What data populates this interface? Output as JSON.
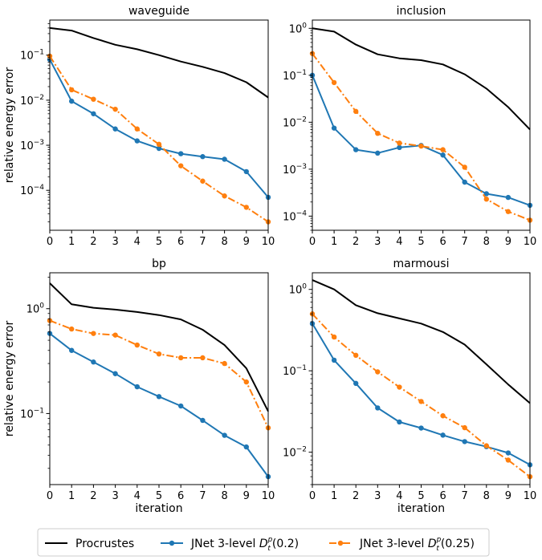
{
  "chart_data": [
    {
      "type": "line",
      "title": "waveguide",
      "xlabel": "",
      "ylabel": "relative energy error",
      "yscale": "log",
      "ylim": [
        1.3e-05,
        0.6
      ],
      "xlim": [
        0,
        10
      ],
      "x": [
        0,
        1,
        2,
        3,
        4,
        5,
        6,
        7,
        8,
        9,
        10
      ],
      "xticks": [
        "0",
        "1",
        "2",
        "3",
        "4",
        "5",
        "6",
        "7",
        "8",
        "9",
        "10"
      ],
      "yticks": [
        {
          "value": 0.1,
          "base": "10",
          "exp": "−1"
        },
        {
          "value": 0.01,
          "base": "10",
          "exp": "−2"
        },
        {
          "value": 0.001,
          "base": "10",
          "exp": "−3"
        },
        {
          "value": 0.0001,
          "base": "10",
          "exp": "−4"
        }
      ],
      "grid": false,
      "series": [
        {
          "name": "Procrustes",
          "values": [
            0.4,
            0.35,
            0.24,
            0.17,
            0.135,
            0.1,
            0.072,
            0.055,
            0.04,
            0.025,
            0.0115
          ]
        },
        {
          "name": "JNet 3-level D_t^p(0.2)",
          "values": [
            0.08,
            0.0095,
            0.005,
            0.0023,
            0.00125,
            0.00085,
            0.00065,
            0.00056,
            0.00049,
            0.00026,
            7e-05
          ]
        },
        {
          "name": "JNet 3-level D_t^p(0.25)",
          "values": [
            0.095,
            0.017,
            0.0105,
            0.0063,
            0.0023,
            0.00105,
            0.00035,
            0.00016,
            7.5e-05,
            4.2e-05,
            2e-05
          ]
        }
      ]
    },
    {
      "type": "line",
      "title": "inclusion",
      "xlabel": "",
      "ylabel": "",
      "yscale": "log",
      "ylim": [
        5e-05,
        1.5
      ],
      "xlim": [
        0,
        10
      ],
      "x": [
        0,
        1,
        2,
        3,
        4,
        5,
        6,
        7,
        8,
        9,
        10
      ],
      "xticks": [
        "0",
        "1",
        "2",
        "3",
        "4",
        "5",
        "6",
        "7",
        "8",
        "9",
        "10"
      ],
      "yticks": [
        {
          "value": 1,
          "base": "10",
          "exp": "0"
        },
        {
          "value": 0.1,
          "base": "10",
          "exp": "−1"
        },
        {
          "value": 0.01,
          "base": "10",
          "exp": "−2"
        },
        {
          "value": 0.001,
          "base": "10",
          "exp": "−3"
        },
        {
          "value": 0.0001,
          "base": "10",
          "exp": "−4"
        }
      ],
      "grid": false,
      "series": [
        {
          "name": "Procrustes",
          "values": [
            1.0,
            0.85,
            0.45,
            0.28,
            0.23,
            0.21,
            0.17,
            0.105,
            0.052,
            0.021,
            0.007
          ]
        },
        {
          "name": "JNet 3-level D_t^p(0.2)",
          "values": [
            0.1,
            0.0075,
            0.0026,
            0.0022,
            0.0029,
            0.0032,
            0.002,
            0.00053,
            0.0003,
            0.00025,
            0.00017
          ]
        },
        {
          "name": "JNet 3-level D_t^p(0.25)",
          "values": [
            0.29,
            0.07,
            0.017,
            0.0058,
            0.0036,
            0.0031,
            0.0026,
            0.0011,
            0.00023,
            0.000125,
            8.2e-05
          ]
        }
      ]
    },
    {
      "type": "line",
      "title": "bp",
      "xlabel": "iteration",
      "ylabel": "relative energy error",
      "yscale": "log",
      "ylim": [
        0.021,
        2.2
      ],
      "xlim": [
        0,
        10
      ],
      "x": [
        0,
        1,
        2,
        3,
        4,
        5,
        6,
        7,
        8,
        9,
        10
      ],
      "xticks": [
        "0",
        "1",
        "2",
        "3",
        "4",
        "5",
        "6",
        "7",
        "8",
        "9",
        "10"
      ],
      "yticks": [
        {
          "value": 1,
          "base": "10",
          "exp": "0"
        },
        {
          "value": 0.1,
          "base": "10",
          "exp": "−1"
        }
      ],
      "grid": false,
      "series": [
        {
          "name": "Procrustes",
          "values": [
            1.75,
            1.1,
            1.02,
            0.98,
            0.93,
            0.87,
            0.79,
            0.63,
            0.45,
            0.27,
            0.105
          ]
        },
        {
          "name": "JNet 3-level D_t^p(0.2)",
          "values": [
            0.58,
            0.4,
            0.31,
            0.24,
            0.18,
            0.145,
            0.118,
            0.086,
            0.062,
            0.048,
            0.025
          ]
        },
        {
          "name": "JNet 3-level D_t^p(0.25)",
          "values": [
            0.77,
            0.64,
            0.58,
            0.56,
            0.45,
            0.37,
            0.34,
            0.34,
            0.3,
            0.2,
            0.073
          ]
        }
      ]
    },
    {
      "type": "line",
      "title": "marmousi",
      "xlabel": "iteration",
      "ylabel": "",
      "yscale": "log",
      "ylim": [
        0.004,
        1.6
      ],
      "xlim": [
        0,
        10
      ],
      "x": [
        0,
        1,
        2,
        3,
        4,
        5,
        6,
        7,
        8,
        9,
        10
      ],
      "xticks": [
        "0",
        "1",
        "2",
        "3",
        "4",
        "5",
        "6",
        "7",
        "8",
        "9",
        "10"
      ],
      "yticks": [
        {
          "value": 1,
          "base": "10",
          "exp": "0"
        },
        {
          "value": 0.1,
          "base": "10",
          "exp": "−1"
        },
        {
          "value": 0.01,
          "base": "10",
          "exp": "−2"
        }
      ],
      "grid": false,
      "series": [
        {
          "name": "Procrustes",
          "values": [
            1.3,
            1.0,
            0.64,
            0.51,
            0.44,
            0.38,
            0.3,
            0.21,
            0.12,
            0.068,
            0.04
          ]
        },
        {
          "name": "JNet 3-level D_t^p(0.2)",
          "values": [
            0.38,
            0.135,
            0.07,
            0.035,
            0.0235,
            0.0198,
            0.0162,
            0.0135,
            0.0117,
            0.0098,
            0.007
          ]
        },
        {
          "name": "JNet 3-level D_t^p(0.25)",
          "values": [
            0.5,
            0.26,
            0.155,
            0.097,
            0.063,
            0.042,
            0.028,
            0.02,
            0.012,
            0.008,
            0.005
          ]
        }
      ]
    }
  ],
  "legend": {
    "placement": "bottom-center",
    "items": [
      {
        "label": "Procrustes",
        "color": "#000000",
        "style": "solid",
        "marker": false
      },
      {
        "label": "JNet 3-level ",
        "math_base": "D",
        "math_sup": "p",
        "math_sub": "t",
        "suffix": "(0.2)",
        "color": "#1f77b4",
        "style": "solid",
        "marker": true
      },
      {
        "label": "JNet 3-level ",
        "math_base": "D",
        "math_sup": "p",
        "math_sub": "t",
        "suffix": "(0.25)",
        "color": "#ff7f0e",
        "style": "dashdot",
        "marker": true
      }
    ]
  },
  "colors": {
    "procrustes": "#000000",
    "jnet_02": "#1f77b4",
    "jnet_025": "#ff7f0e"
  }
}
